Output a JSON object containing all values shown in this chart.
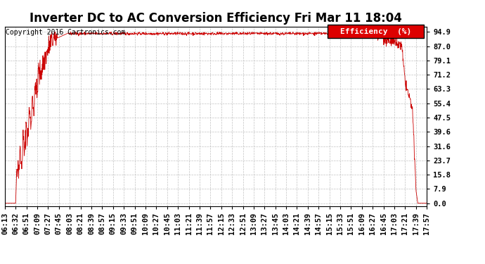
{
  "title": "Inverter DC to AC Conversion Efficiency Fri Mar 11 18:04",
  "copyright": "Copyright 2016 Cartronics.com",
  "legend_label": "Efficiency  (%)",
  "legend_bg": "#dd0000",
  "legend_fg": "#ffffff",
  "line_color": "#cc0000",
  "bg_color": "#ffffff",
  "plot_bg": "#ffffff",
  "grid_color": "#bbbbbb",
  "yticks": [
    0.0,
    7.9,
    15.8,
    23.7,
    31.6,
    39.6,
    47.5,
    55.4,
    63.3,
    71.2,
    79.1,
    87.0,
    94.9
  ],
  "ylim": [
    -1.5,
    98.0
  ],
  "xtick_labels": [
    "06:13",
    "06:32",
    "06:51",
    "07:09",
    "07:27",
    "07:45",
    "08:03",
    "08:21",
    "08:39",
    "08:57",
    "09:15",
    "09:33",
    "09:51",
    "10:09",
    "10:27",
    "10:45",
    "11:03",
    "11:21",
    "11:39",
    "11:57",
    "12:15",
    "12:33",
    "12:51",
    "13:09",
    "13:27",
    "13:45",
    "14:03",
    "14:21",
    "14:39",
    "14:57",
    "15:15",
    "15:33",
    "15:51",
    "16:09",
    "16:27",
    "16:45",
    "17:03",
    "17:21",
    "17:39",
    "17:57"
  ],
  "title_fontsize": 12,
  "label_fontsize": 7.5,
  "copyright_fontsize": 7
}
